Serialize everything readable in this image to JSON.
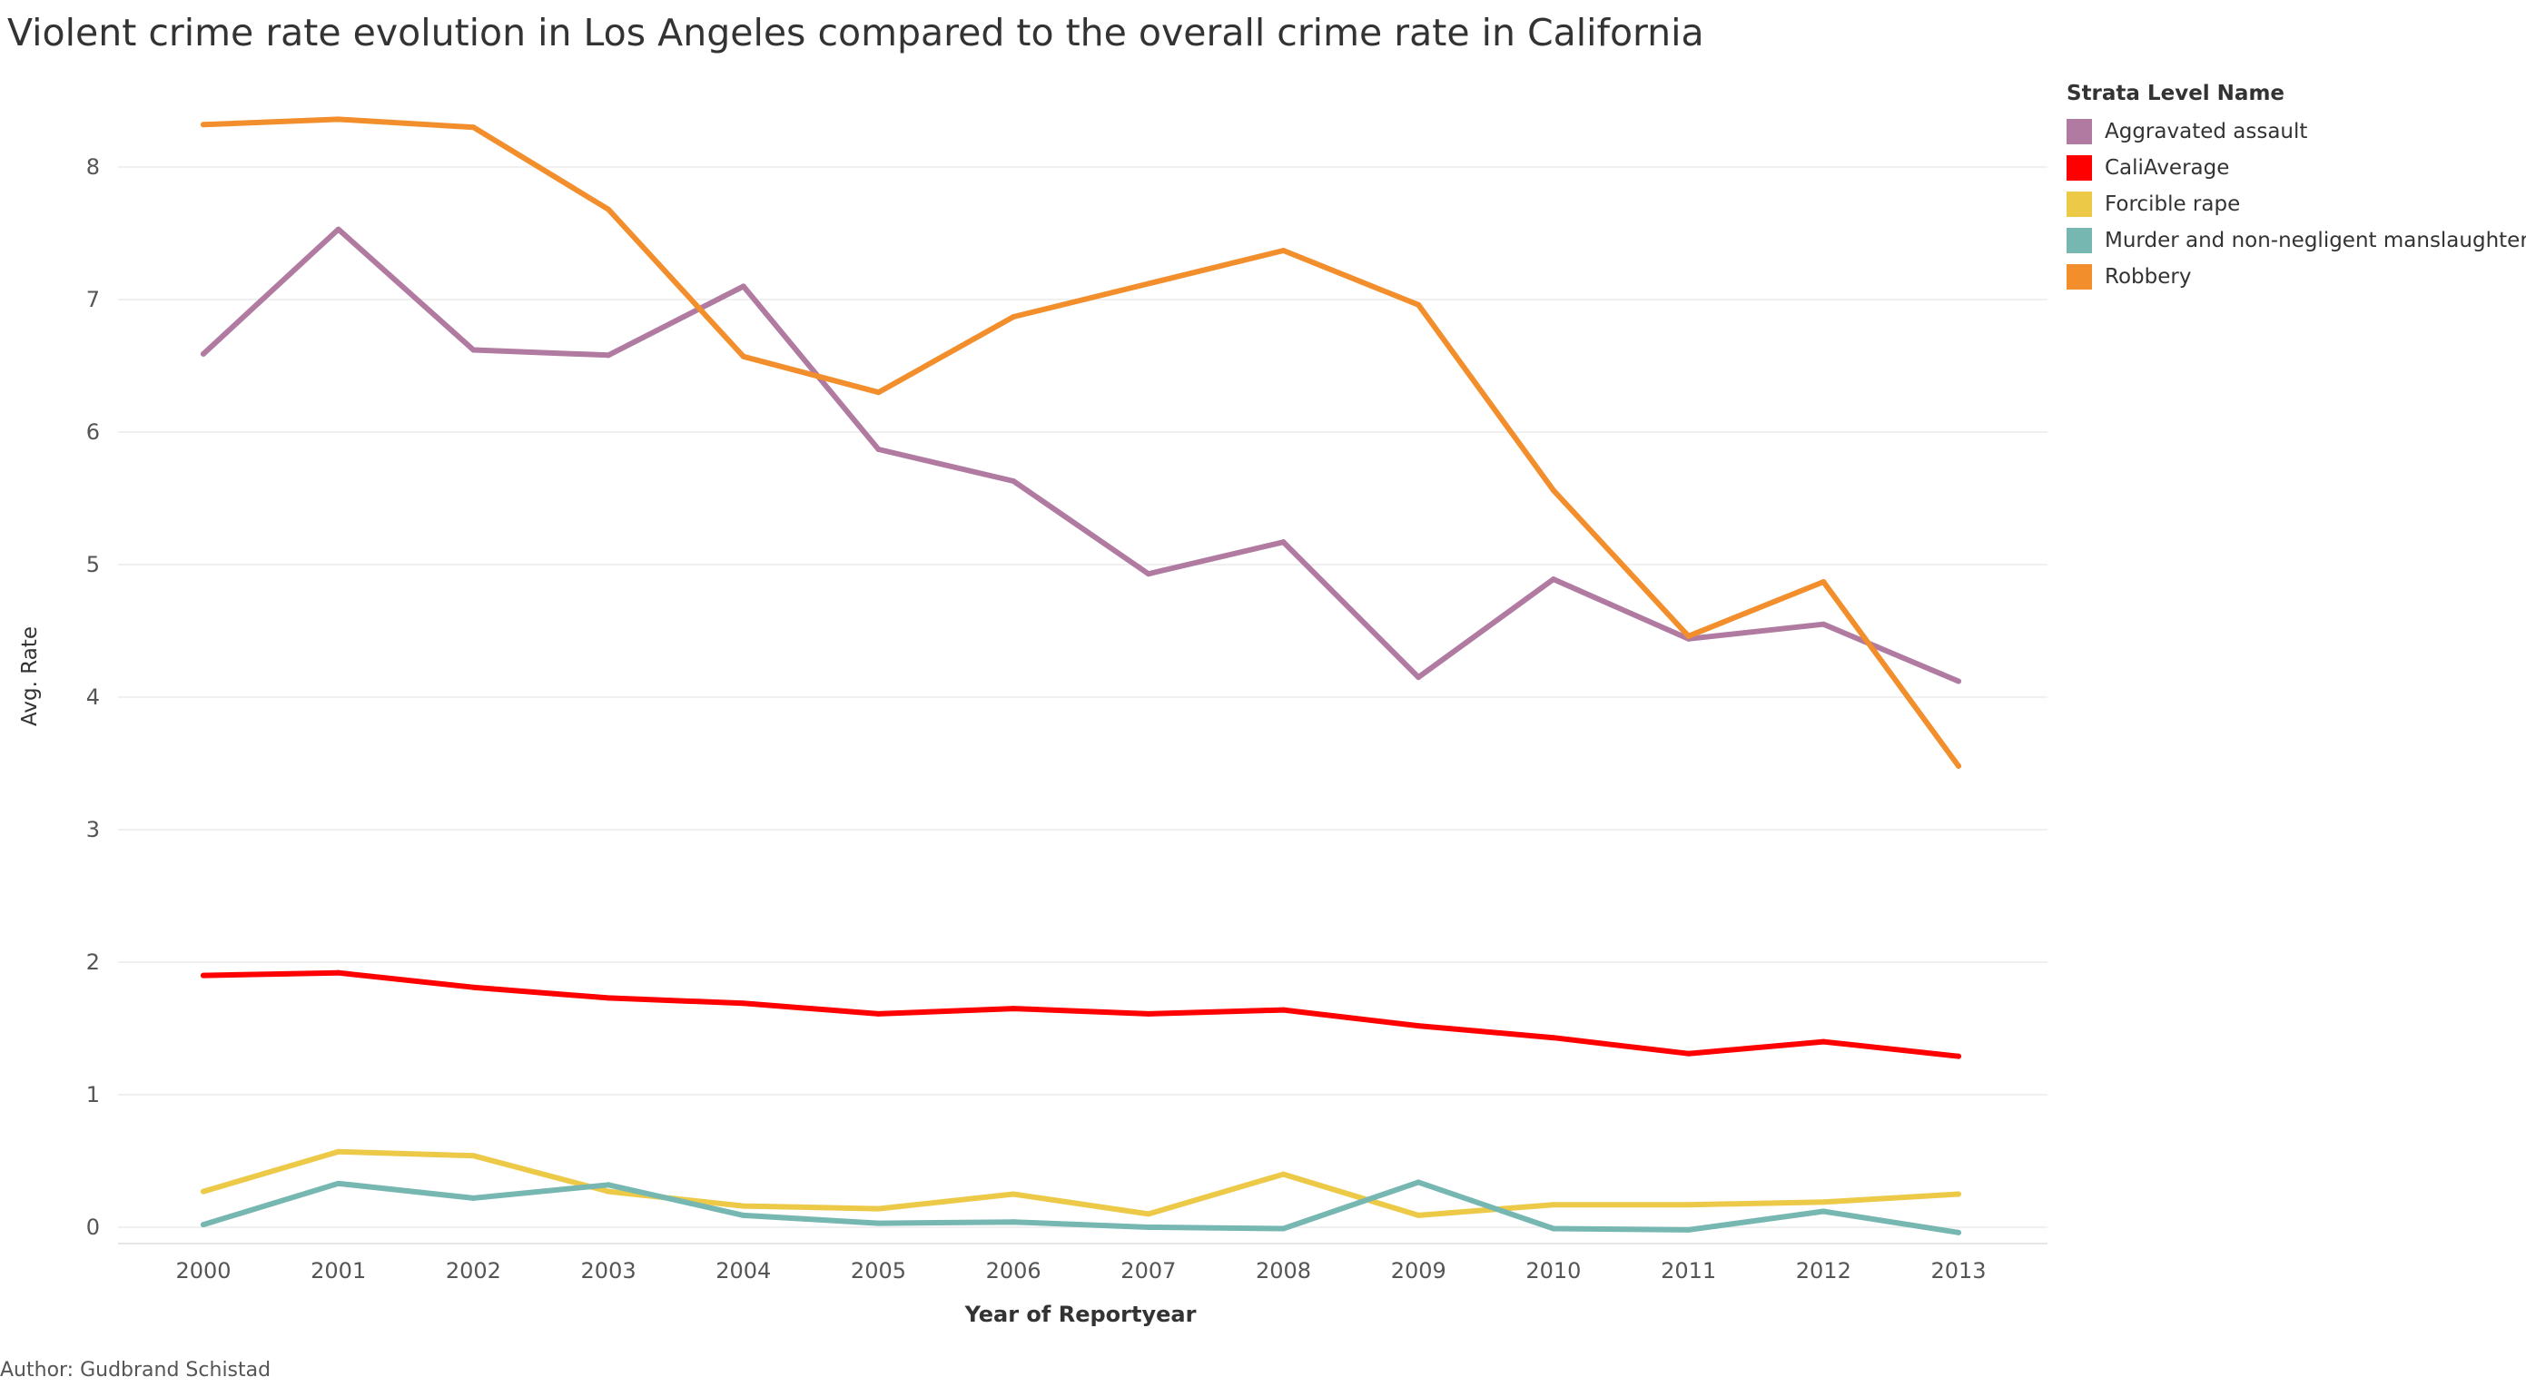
{
  "title": "Violent crime rate evolution in Los Angeles compared to the overall crime rate in California",
  "author": "Author: Gudbrand Schistad",
  "chart_data": {
    "type": "line",
    "title": "Violent crime rate evolution in Los Angeles compared to the overall crime rate in California",
    "xlabel": "Year of Reportyear",
    "ylabel": "Avg. Rate",
    "x": [
      "2000",
      "2001",
      "2002",
      "2003",
      "2004",
      "2005",
      "2006",
      "2007",
      "2008",
      "2009",
      "2010",
      "2011",
      "2012",
      "2013"
    ],
    "ylim": [
      -0.1,
      9.2
    ],
    "yticks": [
      0,
      1,
      2,
      3,
      4,
      5,
      6,
      7,
      8
    ],
    "grid": true,
    "legend_title": "Strata Level Name",
    "legend_position": "right",
    "series": [
      {
        "name": "Aggravated assault",
        "color": "#B07AA1",
        "values": [
          6.59,
          7.53,
          6.62,
          6.58,
          7.1,
          5.87,
          5.63,
          4.93,
          5.17,
          4.15,
          4.89,
          4.44,
          4.55,
          4.12
        ]
      },
      {
        "name": "CaliAverage",
        "color": "#FF0000",
        "values": [
          1.9,
          1.92,
          1.81,
          1.73,
          1.69,
          1.61,
          1.65,
          1.61,
          1.64,
          1.52,
          1.43,
          1.31,
          1.4,
          1.29
        ]
      },
      {
        "name": "Forcible rape",
        "color": "#EDC948",
        "values": [
          0.27,
          0.57,
          0.54,
          0.27,
          0.16,
          0.14,
          0.25,
          0.1,
          0.4,
          0.09,
          0.17,
          0.17,
          0.19,
          0.25
        ]
      },
      {
        "name": "Murder and non-negligent manslaughter",
        "color": "#76B7B2",
        "values": [
          0.02,
          0.33,
          0.22,
          0.32,
          0.09,
          0.03,
          0.04,
          0.0,
          -0.01,
          0.34,
          -0.01,
          -0.02,
          0.12,
          -0.04
        ]
      },
      {
        "name": "Robbery",
        "color": "#F28E2B",
        "values": [
          8.32,
          8.36,
          8.3,
          7.68,
          6.57,
          6.3,
          6.87,
          7.12,
          7.37,
          6.96,
          5.56,
          4.46,
          4.87,
          3.48
        ]
      }
    ]
  }
}
